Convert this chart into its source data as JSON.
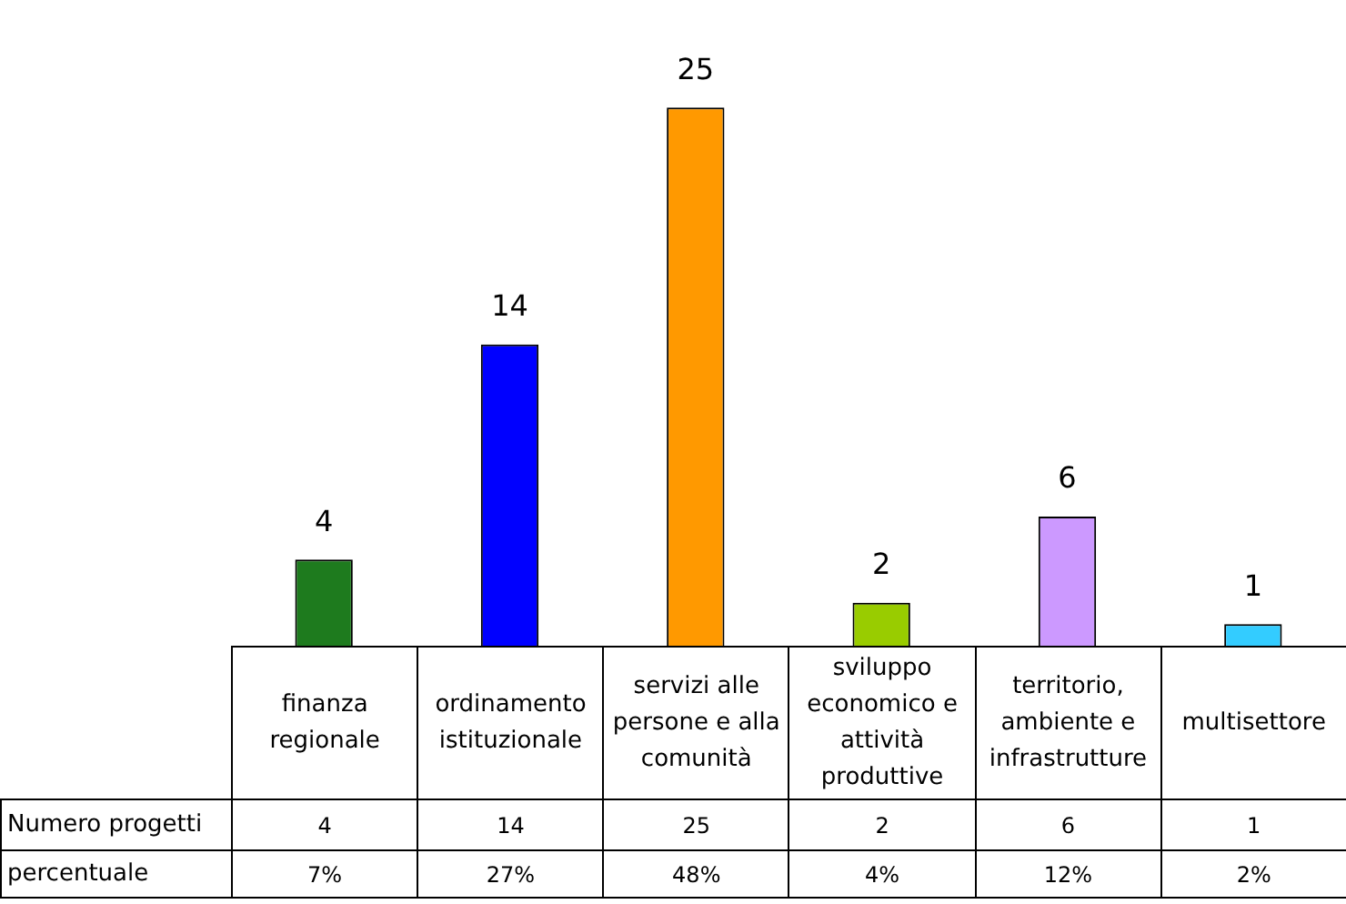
{
  "chart_data": {
    "type": "bar",
    "categories": [
      "finanza regionale",
      "ordinamento istituzionale",
      "servizi alle persone e alla comunità",
      "sviluppo economico e attività produttive",
      "territorio, ambiente e infrastrutture",
      "multisettore"
    ],
    "series": [
      {
        "name": "Numero progetti",
        "values": [
          4,
          14,
          25,
          2,
          6,
          1
        ],
        "value_labels": [
          "4",
          "14",
          "25",
          "2",
          "6",
          "1"
        ],
        "colors": [
          "#1e7b1e",
          "#0000ff",
          "#ff9900",
          "#99cc00",
          "#cc99ff",
          "#33ccff"
        ]
      }
    ],
    "data_labels": true,
    "annotations": [
      "4",
      "14",
      "25",
      "2",
      "6",
      "1",
      "percentuale",
      "7%",
      "27%",
      "48%",
      "4%",
      "12%",
      "2%"
    ]
  }
}
